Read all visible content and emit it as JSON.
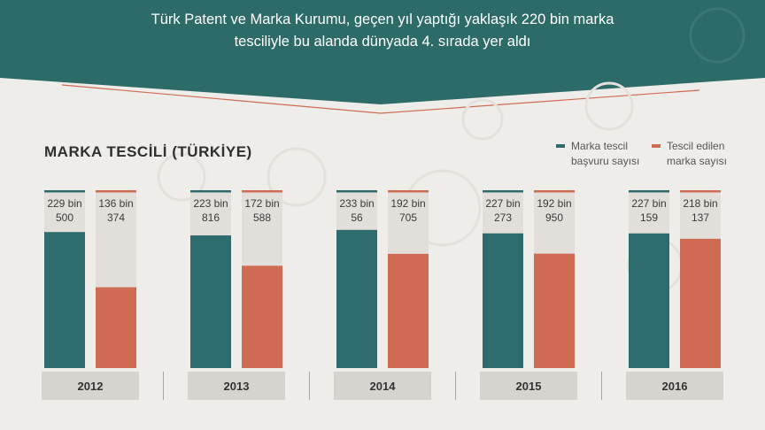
{
  "header": {
    "line1": "Türk Patent ve Marka Kurumu, geçen yıl yaptığı yaklaşık 220 bin marka",
    "line2": "tesciliyle bu alanda dünyada 4. sırada yer aldı"
  },
  "legend": {
    "series0_line1": "Marka tescil",
    "series0_line2": "başvuru sayısı",
    "series1_line1": "Tescil edilen",
    "series1_line2": "marka sayısı"
  },
  "colors": {
    "header": "#2d6b68",
    "series0": "#2e6b6e",
    "series1": "#cf6b52",
    "bar_background": "#e2dfda",
    "year_band": "#d7d4cf",
    "page_background": "#efede9"
  },
  "chart_data": {
    "type": "bar",
    "title": "MARKA TESCİLİ (TÜRKİYE)",
    "categories": [
      "2012",
      "2013",
      "2014",
      "2015",
      "2016"
    ],
    "series": [
      {
        "name": "Marka tescil başvuru sayısı",
        "values": [
          229500,
          223816,
          233056,
          227273,
          227159
        ],
        "labels": [
          [
            "229 bin",
            "500"
          ],
          [
            "223 bin",
            "816"
          ],
          [
            "233 bin",
            "56"
          ],
          [
            "227 bin",
            "273"
          ],
          [
            "227 bin",
            "159"
          ]
        ]
      },
      {
        "name": "Tescil edilen marka sayısı",
        "values": [
          136374,
          172588,
          192705,
          192950,
          218137
        ],
        "labels": [
          [
            "136 bin",
            "374"
          ],
          [
            "172 bin",
            "588"
          ],
          [
            "192 bin",
            "705"
          ],
          [
            "192 bin",
            "950"
          ],
          [
            "218 bin",
            "137"
          ]
        ]
      }
    ],
    "ylim": [
      0,
      300000
    ],
    "grid": false,
    "legend_position": "top-right"
  }
}
